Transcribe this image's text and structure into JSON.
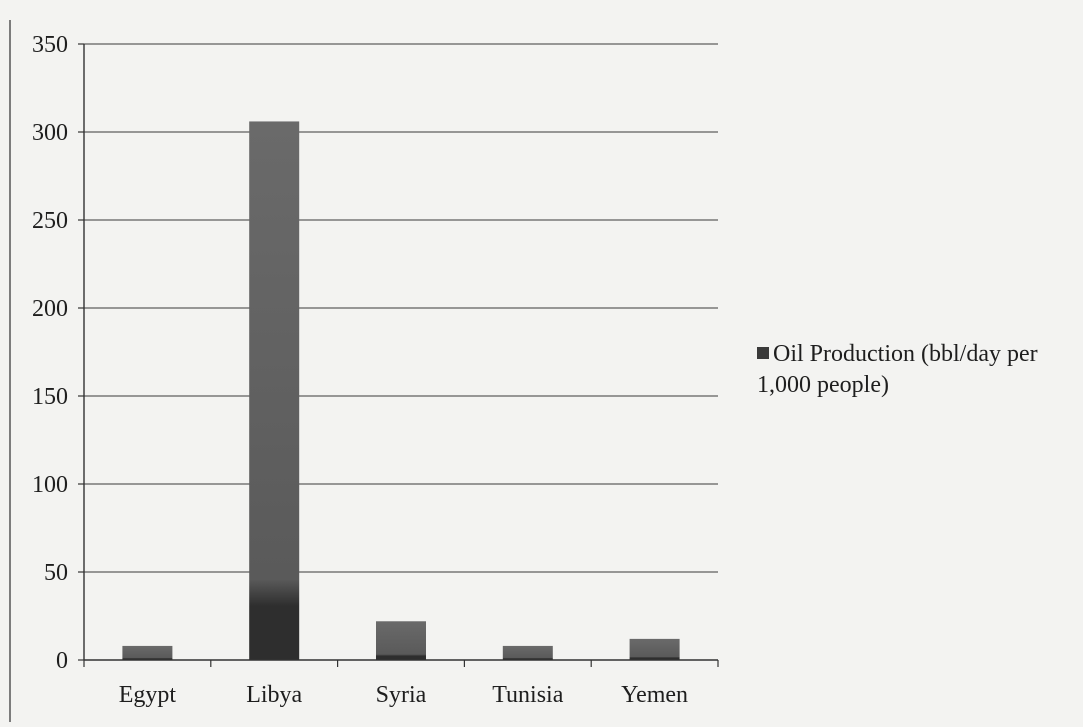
{
  "chart_data": {
    "type": "bar",
    "categories": [
      "Egypt",
      "Libya",
      "Syria",
      "Tunisia",
      "Yemen"
    ],
    "series": [
      {
        "name": "Oil Production (bbl/day per 1,000 people)",
        "values": [
          8,
          306,
          22,
          8,
          12
        ]
      }
    ],
    "ylim": [
      0,
      350
    ],
    "yticks": [
      "0",
      "50",
      "100",
      "150",
      "200",
      "250",
      "300",
      "350"
    ],
    "grid": true,
    "legend_position": "right",
    "colors": {
      "bar_top": "#6a6a6a",
      "bar_bottom": "#2e2e2e",
      "grid": "#777777",
      "axis": "#333333"
    }
  }
}
